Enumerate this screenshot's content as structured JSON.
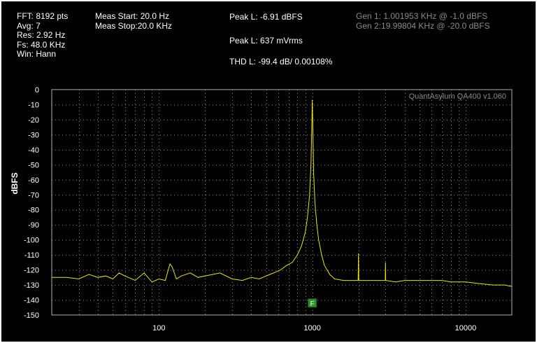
{
  "header": {
    "fft_info": [
      "FFT: 8192 pts",
      "Avg: 7",
      "Res: 2.92 Hz",
      "Fs: 48.0 KHz",
      "Win: Hann"
    ],
    "meas_info": [
      "Meas Start: 20.0 Hz",
      "Meas Stop:20.0 KHz"
    ],
    "peak_dbfs": "Peak L: -6.91 dBFS",
    "peak_vrms": "Peak L: 637 mVrms",
    "thd": "THD L: -99.4 dB/ 0.00108%",
    "gen": [
      "Gen 1: 1.001953 KHz @ -1.0  dBFS",
      "Gen 2:19.99804 KHz @ -20.0  dBFS"
    ]
  },
  "watermark": "QuantAsylum QA400 v1.060",
  "marker_label": "F",
  "colors": {
    "trace": "#e8e800",
    "grid": "#8c8c8c",
    "border": "#b0b0b0",
    "marker": "#2f8f2f",
    "background": "#000000"
  },
  "chart_data": {
    "type": "line",
    "xlabel": "",
    "ylabel": "dBFS",
    "x_scale": "log",
    "xlim": [
      20,
      20000
    ],
    "ylim": [
      -150,
      0
    ],
    "x_ticks": [
      100,
      1000,
      10000
    ],
    "x_tick_labels": [
      "100",
      "1000",
      "10000"
    ],
    "y_ticks": [
      0,
      -10,
      -20,
      -30,
      -40,
      -50,
      -60,
      -70,
      -80,
      -90,
      -100,
      -110,
      -120,
      -130,
      -140,
      -150
    ],
    "y_tick_labels": [
      "0",
      "-10",
      "-20",
      "-30",
      "-40",
      "-50",
      "-60",
      "-70",
      "-80",
      "-90",
      "-100",
      "-110",
      "-120",
      "-130",
      "-140",
      "-150"
    ],
    "grid": true,
    "marker": {
      "x": 1000,
      "y": -142
    },
    "series": [
      {
        "x": [
          20,
          25,
          30,
          35,
          40,
          45,
          50,
          55,
          60,
          70,
          80,
          90,
          100,
          110,
          118,
          122,
          130,
          140,
          160,
          180,
          200,
          250,
          300,
          350,
          400,
          450,
          500,
          560,
          620,
          680,
          740,
          800,
          850,
          900,
          930,
          960,
          980,
          990,
          996,
          1000,
          1004,
          1010,
          1020,
          1040,
          1070,
          1100,
          1150,
          1200,
          1250,
          1300,
          1400,
          1600,
          1800,
          1990,
          2000,
          2010,
          2200,
          2500,
          2990,
          3000,
          3010,
          3500,
          4000,
          5000,
          6000,
          7000,
          8000,
          10000,
          12000,
          15000,
          18000,
          20000
        ],
        "y": [
          -125,
          -125,
          -126,
          -123,
          -125,
          -124,
          -126,
          -122,
          -124,
          -127,
          -122,
          -128,
          -126,
          -127,
          -116,
          -118,
          -126,
          -124,
          -122,
          -125,
          -124,
          -122,
          -126,
          -127,
          -125,
          -126,
          -124,
          -122,
          -120,
          -117,
          -115,
          -110,
          -104,
          -95,
          -85,
          -70,
          -50,
          -30,
          -15,
          -6.9,
          -15,
          -30,
          -55,
          -75,
          -90,
          -100,
          -110,
          -117,
          -120,
          -123,
          -126,
          -127,
          -127,
          -127,
          -109,
          -127,
          -127,
          -127,
          -127,
          -115,
          -127,
          -128,
          -127,
          -127,
          -127,
          -127,
          -128,
          -128,
          -129,
          -130,
          -130,
          -131
        ]
      }
    ]
  }
}
